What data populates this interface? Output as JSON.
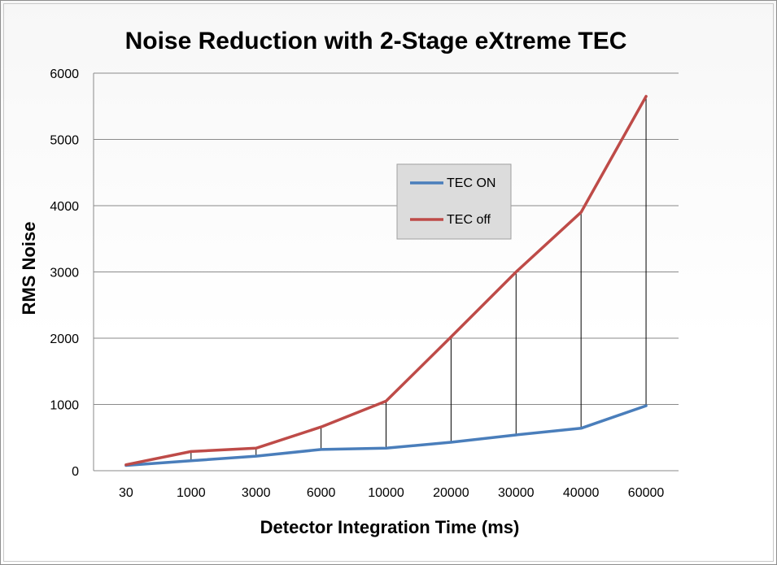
{
  "chart_data": {
    "type": "line",
    "title": "Noise Reduction with 2-Stage eXtreme TEC",
    "xlabel": "Detector Integration Time (ms)",
    "ylabel": "RMS Noise",
    "categories": [
      "30",
      "1000",
      "3000",
      "6000",
      "10000",
      "20000",
      "30000",
      "40000",
      "60000"
    ],
    "ylim": [
      0,
      6000
    ],
    "yticks": [
      0,
      1000,
      2000,
      3000,
      4000,
      5000,
      6000
    ],
    "grid": "horizontal",
    "legend_position": "center-right",
    "drop_lines": true,
    "series": [
      {
        "name": "TEC ON",
        "color": "#4a7ebb",
        "values": [
          80,
          150,
          220,
          320,
          340,
          430,
          540,
          640,
          980
        ]
      },
      {
        "name": "TEC off",
        "color": "#be4b48",
        "values": [
          90,
          290,
          340,
          660,
          1050,
          2020,
          3000,
          3900,
          5650
        ]
      }
    ]
  }
}
